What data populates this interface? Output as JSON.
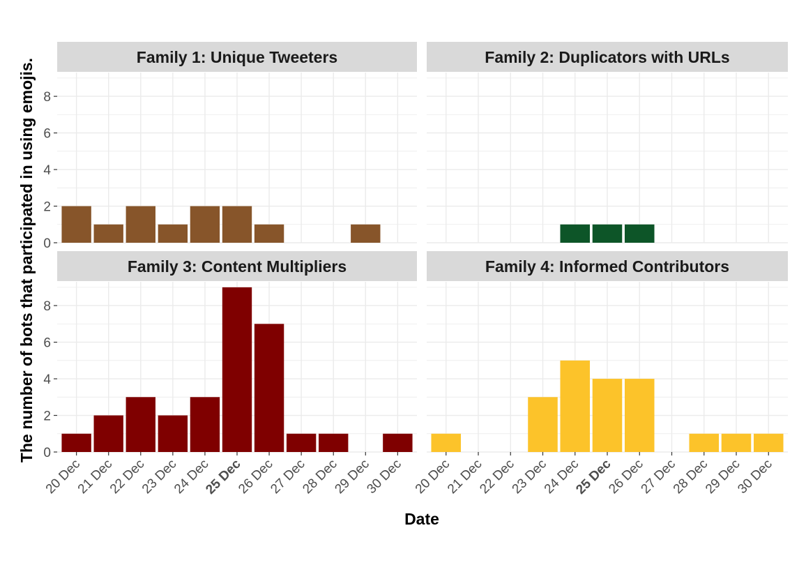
{
  "chart_data": {
    "type": "bar",
    "xlabel": "Date",
    "ylabel": "The number of bots that participated in using emojis.",
    "categories": [
      "20 Dec",
      "21 Dec",
      "22 Dec",
      "23 Dec",
      "24 Dec",
      "25 Dec",
      "26 Dec",
      "27 Dec",
      "28 Dec",
      "29 Dec",
      "30 Dec"
    ],
    "highlight_category": "25 Dec",
    "yticks": [
      0,
      2,
      4,
      6,
      8
    ],
    "ylim": [
      0,
      9.3
    ],
    "grid": true,
    "facets": [
      {
        "title": "Family 1: Unique Tweeters",
        "color": "#87552A",
        "values": [
          2,
          1,
          2,
          1,
          2,
          2,
          1,
          0,
          0,
          1,
          0
        ]
      },
      {
        "title": "Family 2: Duplicators with URLs",
        "color": "#0D5528",
        "values": [
          0,
          0,
          0,
          0,
          1,
          1,
          1,
          0,
          0,
          0,
          0
        ]
      },
      {
        "title": "Family 3: Content Multipliers",
        "color": "#7F0000",
        "values": [
          1,
          2,
          3,
          2,
          3,
          9,
          7,
          1,
          1,
          0,
          1
        ]
      },
      {
        "title": "Family 4: Informed Contributors",
        "color": "#FCC32A",
        "values": [
          1,
          0,
          0,
          3,
          5,
          4,
          4,
          0,
          1,
          1,
          1
        ]
      }
    ],
    "colors": {
      "strip_background": "#D9D9D9",
      "grid": "#EBEBEB",
      "tick_text": "#4D4D4D"
    }
  }
}
